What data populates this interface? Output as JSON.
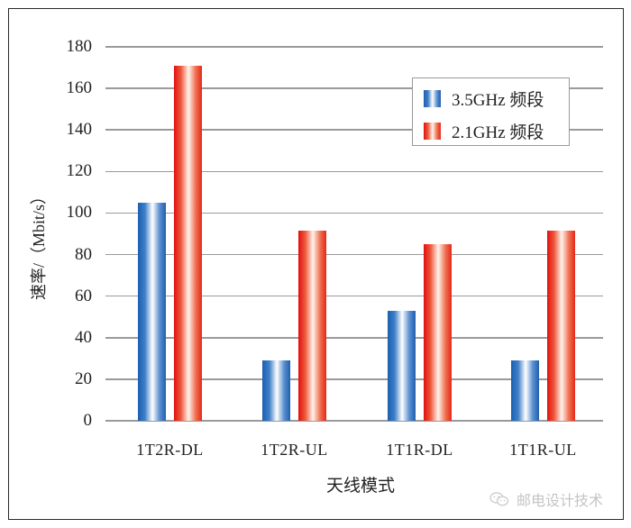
{
  "chart_data": {
    "type": "bar",
    "title": "",
    "xlabel": "天线模式",
    "ylabel": "速率/（Mbit/s）",
    "categories": [
      "1T2R-DL",
      "1T2R-UL",
      "1T1R-DL",
      "1T1R-UL"
    ],
    "series": [
      {
        "name": "3.5GHz 频段",
        "color": "#1c5fb0",
        "values": [
          105,
          29,
          53,
          29
        ]
      },
      {
        "name": "2.1GHz 频段",
        "color": "#e01010",
        "values": [
          171,
          91.5,
          85,
          91.5
        ]
      }
    ],
    "ylim": [
      0,
      180
    ],
    "yticks": [
      0,
      20,
      40,
      60,
      80,
      100,
      120,
      140,
      160,
      180
    ],
    "grid": true,
    "legend_position": "upper right"
  },
  "legend": {
    "items": [
      {
        "label": "3.5GHz 频段"
      },
      {
        "label": "2.1GHz 频段"
      }
    ]
  },
  "axis": {
    "x_title": "天线模式",
    "y_title": "速率/（Mbit/s）"
  },
  "watermark": {
    "icon": "wechat-icon",
    "text": "邮电设计技术"
  }
}
